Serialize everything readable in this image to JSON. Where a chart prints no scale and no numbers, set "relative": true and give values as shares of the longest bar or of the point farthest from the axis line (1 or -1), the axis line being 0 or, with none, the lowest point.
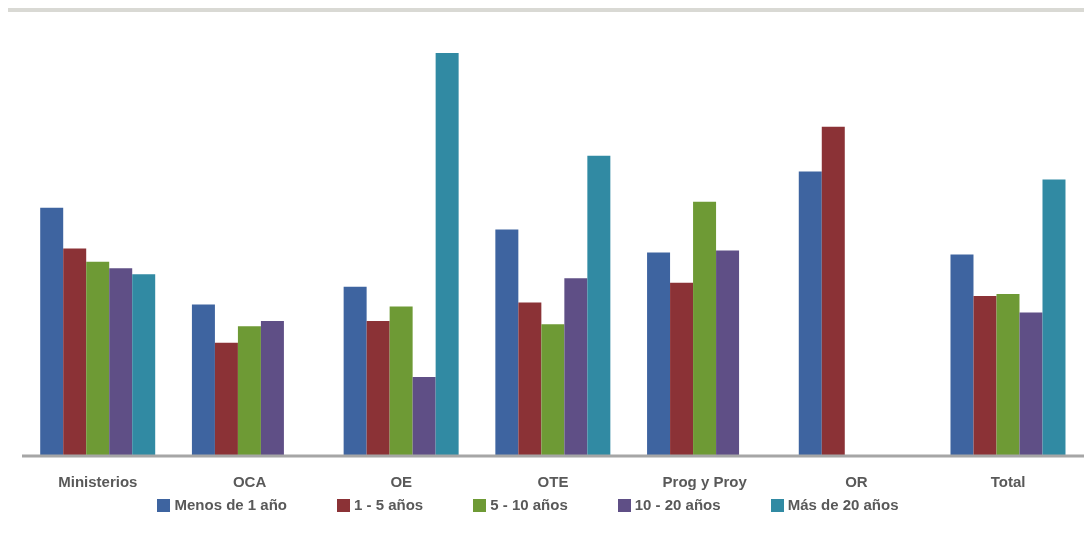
{
  "chart_data": {
    "type": "bar",
    "relative": true,
    "categories": [
      "Ministerios",
      "OCA",
      "OE",
      "OTE",
      "Prog y Proy",
      "OR",
      "Total"
    ],
    "legend": "bottom",
    "grid": false,
    "series": [
      {
        "name": "Menos de 1 año",
        "color": "#3e64a0",
        "values": [
          0.616,
          0.376,
          0.42,
          0.562,
          0.505,
          0.706,
          0.5
        ]
      },
      {
        "name": "1 - 5 años",
        "color": "#8b3236",
        "values": [
          0.515,
          0.281,
          0.335,
          0.381,
          0.43,
          0.817,
          0.397
        ]
      },
      {
        "name": "5 - 10 años",
        "color": "#6e9a35",
        "values": [
          0.482,
          0.322,
          0.371,
          0.327,
          0.631,
          null,
          0.402
        ]
      },
      {
        "name": "10 - 20 años",
        "color": "#5f4f86",
        "values": [
          0.466,
          0.335,
          0.196,
          0.441,
          0.51,
          null,
          0.356
        ]
      },
      {
        "name": "Más de 20 años",
        "color": "#318aa3",
        "values": [
          0.451,
          null,
          1,
          0.745,
          null,
          null,
          0.686
        ]
      }
    ]
  }
}
